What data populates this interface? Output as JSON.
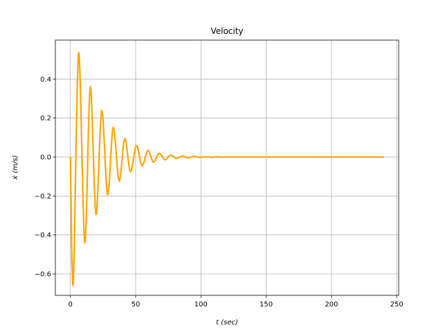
{
  "chart_data": {
    "type": "line",
    "title": "Velocity",
    "xlabel": "t (sec)",
    "ylabel": "ẋ (m/s)",
    "xlim": [
      -11.5,
      251.5
    ],
    "ylim": [
      -0.71,
      0.6
    ],
    "xticks": [
      0,
      50,
      100,
      150,
      200,
      250
    ],
    "yticks": [
      -0.6,
      -0.4,
      -0.2,
      0.0,
      0.2,
      0.4
    ],
    "xtick_labels": [
      "0",
      "50",
      "100",
      "150",
      "200",
      "250"
    ],
    "ytick_labels": [
      "−0.6",
      "−0.4",
      "−0.2",
      "0.0",
      "0.2",
      "0.4"
    ],
    "grid": true,
    "series": [
      {
        "color": "#ffa500",
        "x": [
          0,
          2.2,
          6.3,
          11.0,
          15.2,
          19.6,
          24.0,
          28.5,
          32.8,
          37.3,
          41.6,
          46.0,
          50.5,
          54.9,
          59.3,
          63.6,
          68.0,
          72.5,
          76.9,
          81.2,
          85.6,
          90.0,
          94.5,
          98.8,
          103.2,
          107.7,
          112.0,
          116.5,
          120.0,
          160.0,
          200.0,
          240.0
        ],
        "y": [
          0.0,
          -0.65,
          0.535,
          -0.44,
          0.36,
          -0.295,
          0.238,
          -0.193,
          0.152,
          -0.123,
          0.095,
          -0.075,
          0.058,
          -0.045,
          0.034,
          -0.026,
          0.019,
          -0.014,
          0.01,
          -0.007,
          0.005,
          -0.004,
          0.003,
          -0.002,
          0.0015,
          -0.001,
          0.0008,
          -0.0005,
          0.0,
          0.0,
          0.0,
          0.0
        ]
      }
    ]
  }
}
